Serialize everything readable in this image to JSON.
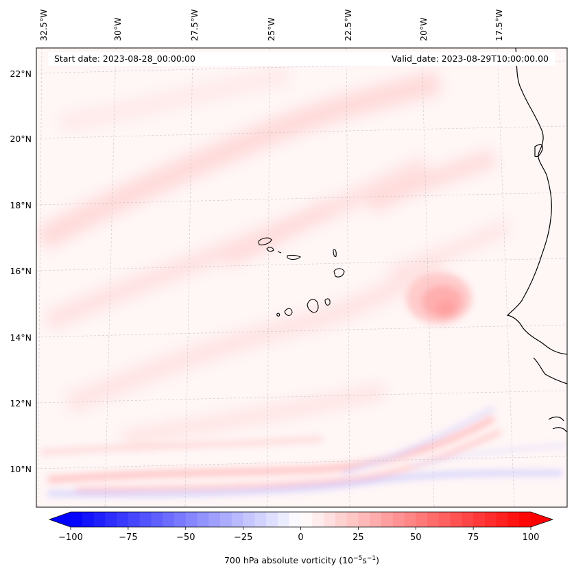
{
  "header": {
    "start_date": "Start date: 2023-08-28_00:00:00",
    "valid_date": "Valid_date: 2023-08-29T10:00:00.00"
  },
  "longitude_labels": [
    "32.5°W",
    "30°W",
    "27.5°W",
    "25°W",
    "22.5°W",
    "20°W",
    "17.5°W"
  ],
  "latitude_labels": [
    "22°N",
    "20°N",
    "18°N",
    "16°N",
    "14°N",
    "12°N",
    "10°N"
  ],
  "colorbar": {
    "title_main": "700 hPa absolute vorticity (10",
    "title_exp1": "−5",
    "title_mid": "s",
    "title_exp2": "−1",
    "title_end": ")",
    "ticks": [
      "−100",
      "−75",
      "−50",
      "−25",
      "0",
      "25",
      "50",
      "75",
      "100"
    ],
    "min": -100,
    "max": 100,
    "levels": 40,
    "min_color": "#0000ff",
    "mid_color": "#ffffff",
    "max_color": "#ff0000"
  }
}
